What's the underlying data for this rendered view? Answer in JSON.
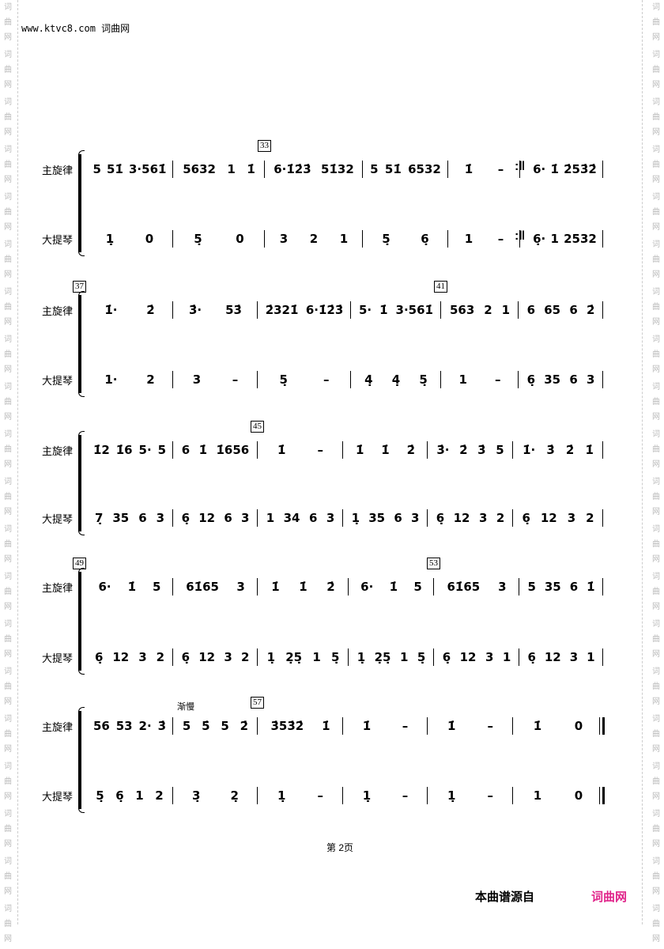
{
  "header": {
    "site": "www.ktvc8.com 词曲网"
  },
  "watermark": "词曲网",
  "labels": {
    "melody": "主旋律",
    "bass": "大提琴"
  },
  "systems": [
    {
      "numbers": [
        {
          "at": 2,
          "n": "33"
        }
      ],
      "repeat_after": 4,
      "tempo": null,
      "melody": [
        "5 51̇ 3·561̇",
        "5632 1 1̇",
        "6·1̇2̇3̇ 51̇32",
        "5 51̇ 6532",
        "1̇ –",
        "6· 1̇ 2̇53̇2̇"
      ],
      "bass": [
        "1̣ 0",
        "5̣ 0",
        "3 2 1",
        "5̣ 6̣",
        "1 –",
        "6̣· 1 2532"
      ]
    },
    {
      "numbers": [
        {
          "at": 0,
          "n": "37"
        },
        {
          "at": 4,
          "n": "41"
        }
      ],
      "tempo": null,
      "melody": [
        "1̇· 2̇",
        "3̇· 53̇",
        "2̇321̇ 6·1̇2̇3̇",
        "5· 1̇ 3·561̇",
        "563 2 1",
        "6 65 6 2̇"
      ],
      "bass": [
        "1· 2",
        "3 –",
        "5̣ –",
        "4̣ 4̣ 5̣",
        "1 –",
        "6̣ 35 6 3"
      ]
    },
    {
      "numbers": [
        {
          "at": 2,
          "n": "45"
        }
      ],
      "tempo": null,
      "melody": [
        "1̇2 1̇6 5· 5",
        "6 1̇ 1̇656",
        "1̇ –",
        "1̇ 1̇ 2̇",
        "3̇· 2̇ 3̇ 5",
        "1̇· 3̇ 2̇ 1̇"
      ],
      "bass": [
        "7̣ 35 6 3",
        "6̣ 12 6 3",
        "1 34 6 3",
        "1̣ 35 6 3",
        "6̣ 12 3 2",
        "6̣ 12 3 2"
      ]
    },
    {
      "numbers": [
        {
          "at": 0,
          "n": "49"
        },
        {
          "at": 4,
          "n": "53"
        }
      ],
      "tempo": null,
      "melody": [
        "6· 1̇ 5",
        "61̇65 3",
        "1̇ 1̇ 2̇",
        "6· 1̇ 5",
        "61̇65 3",
        "5 35 6 1̇"
      ],
      "bass": [
        "6̣ 12 3 2",
        "6̣ 12 3 2",
        "1̣ 2̣5̣ 1 5̣",
        "1̣ 2̣5̣ 1 5̣",
        "6̣ 12 3 1",
        "6̣ 12 3 1"
      ]
    },
    {
      "numbers": [
        {
          "at": 2,
          "n": "57"
        }
      ],
      "tempo": {
        "at": 1,
        "text": "渐慢"
      },
      "final": true,
      "melody": [
        "56 53 2· 3̇",
        "5 5̇ 5 2̇",
        "3̇53̇2̇ 1̇",
        "1̇ –",
        "1̇ –",
        "1̇ 0"
      ],
      "bass": [
        "5̣ 6̣ 1 2",
        "3̣ 2̣",
        "1̣ –",
        "1̣ –",
        "1̣ –",
        "1 0"
      ]
    }
  ],
  "repeat_sign": ":‖",
  "footer": {
    "page": "第 2页",
    "source": "本曲谱源自",
    "brand": "词曲网",
    "brand_color": "#e0248a"
  }
}
